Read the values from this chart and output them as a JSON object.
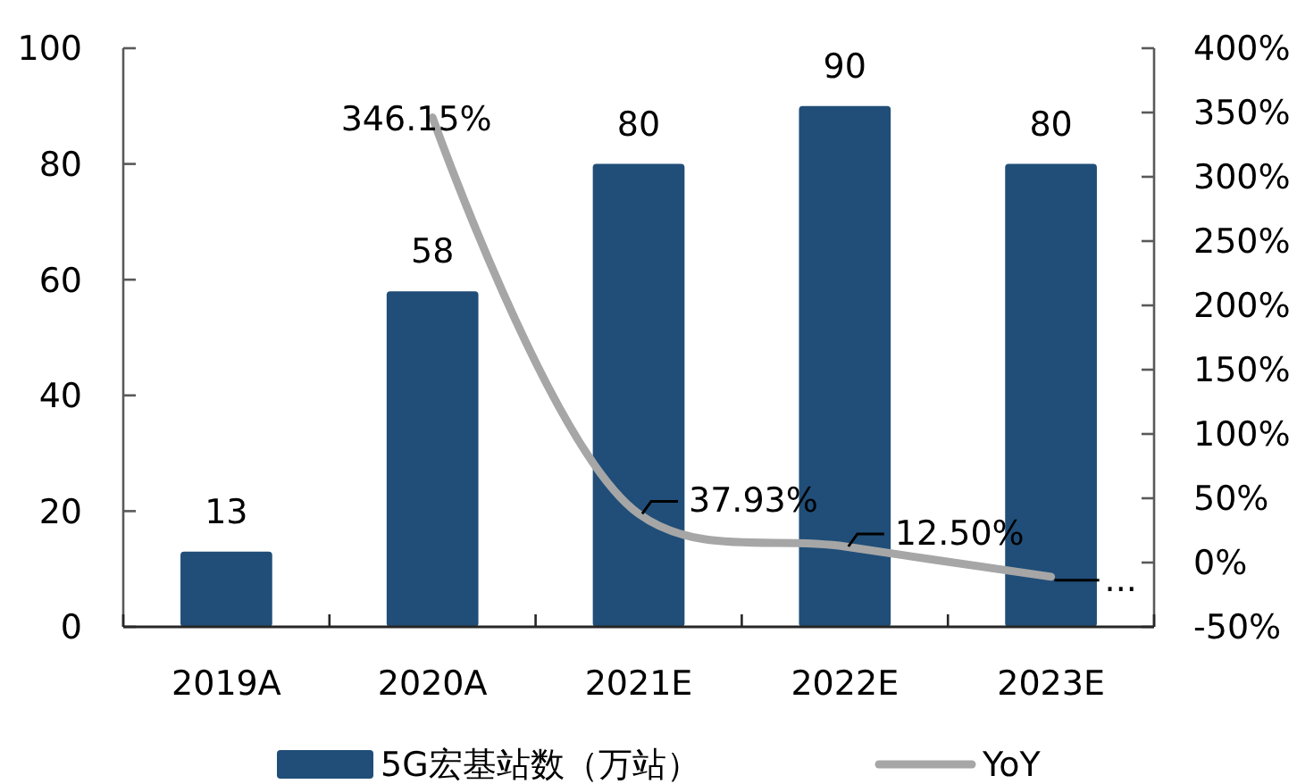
{
  "chart_data": {
    "type": "bar",
    "categories": [
      "2019A",
      "2020A",
      "2021E",
      "2022E",
      "2023E"
    ],
    "series": [
      {
        "name": "5G宏基站数（万站）",
        "color": "#204e78",
        "values": [
          13,
          58,
          80,
          90,
          80
        ],
        "value_labels": [
          "13",
          "58",
          "80",
          "90",
          "80"
        ]
      },
      {
        "name": "YoY",
        "type": "line",
        "axis": "y2",
        "color": "#a6a6a6",
        "values": [
          null,
          346.15,
          37.93,
          12.5,
          -11
        ],
        "value_labels": [
          null,
          "346.15%",
          "37.93%",
          "12.50%",
          "..."
        ]
      }
    ],
    "ylim": [
      0,
      100
    ],
    "yticks": [
      0,
      20,
      40,
      60,
      80,
      100
    ],
    "y2lim": [
      -50,
      400
    ],
    "y2ticks": [
      {
        "value": -50,
        "label": "-50%"
      },
      {
        "value": 0,
        "label": "0%"
      },
      {
        "value": 50,
        "label": "50%"
      },
      {
        "value": 100,
        "label": "100%"
      },
      {
        "value": 150,
        "label": "150%"
      },
      {
        "value": 200,
        "label": "200%"
      },
      {
        "value": 250,
        "label": "250%"
      },
      {
        "value": 300,
        "label": "300%"
      },
      {
        "value": 350,
        "label": "350%"
      },
      {
        "value": 400,
        "label": "400%"
      }
    ],
    "grid": false,
    "legend": "bottom",
    "marker": "none",
    "line_style": "solid"
  }
}
